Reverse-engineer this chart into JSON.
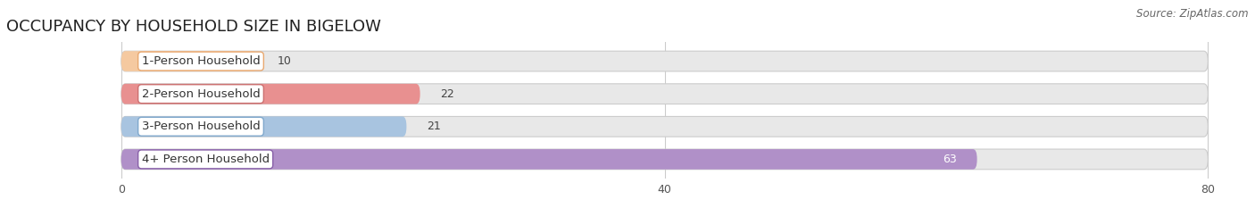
{
  "title": "OCCUPANCY BY HOUSEHOLD SIZE IN BIGELOW",
  "source": "Source: ZipAtlas.com",
  "categories": [
    "1-Person Household",
    "2-Person Household",
    "3-Person Household",
    "4+ Person Household"
  ],
  "values": [
    10,
    22,
    21,
    63
  ],
  "bar_colors": [
    "#f5c9a0",
    "#e89090",
    "#a8c4e0",
    "#b090c8"
  ],
  "label_pill_border_colors": [
    "#e8a870",
    "#cc7070",
    "#80a8cc",
    "#8860a8"
  ],
  "xlim": [
    -8,
    83
  ],
  "data_xlim": [
    0,
    80
  ],
  "xticks": [
    0,
    40,
    80
  ],
  "background_color": "#ffffff",
  "bar_bg_color": "#e8e8e8",
  "title_fontsize": 13,
  "source_fontsize": 8.5,
  "label_fontsize": 9.5,
  "value_fontsize": 9,
  "tick_fontsize": 9
}
